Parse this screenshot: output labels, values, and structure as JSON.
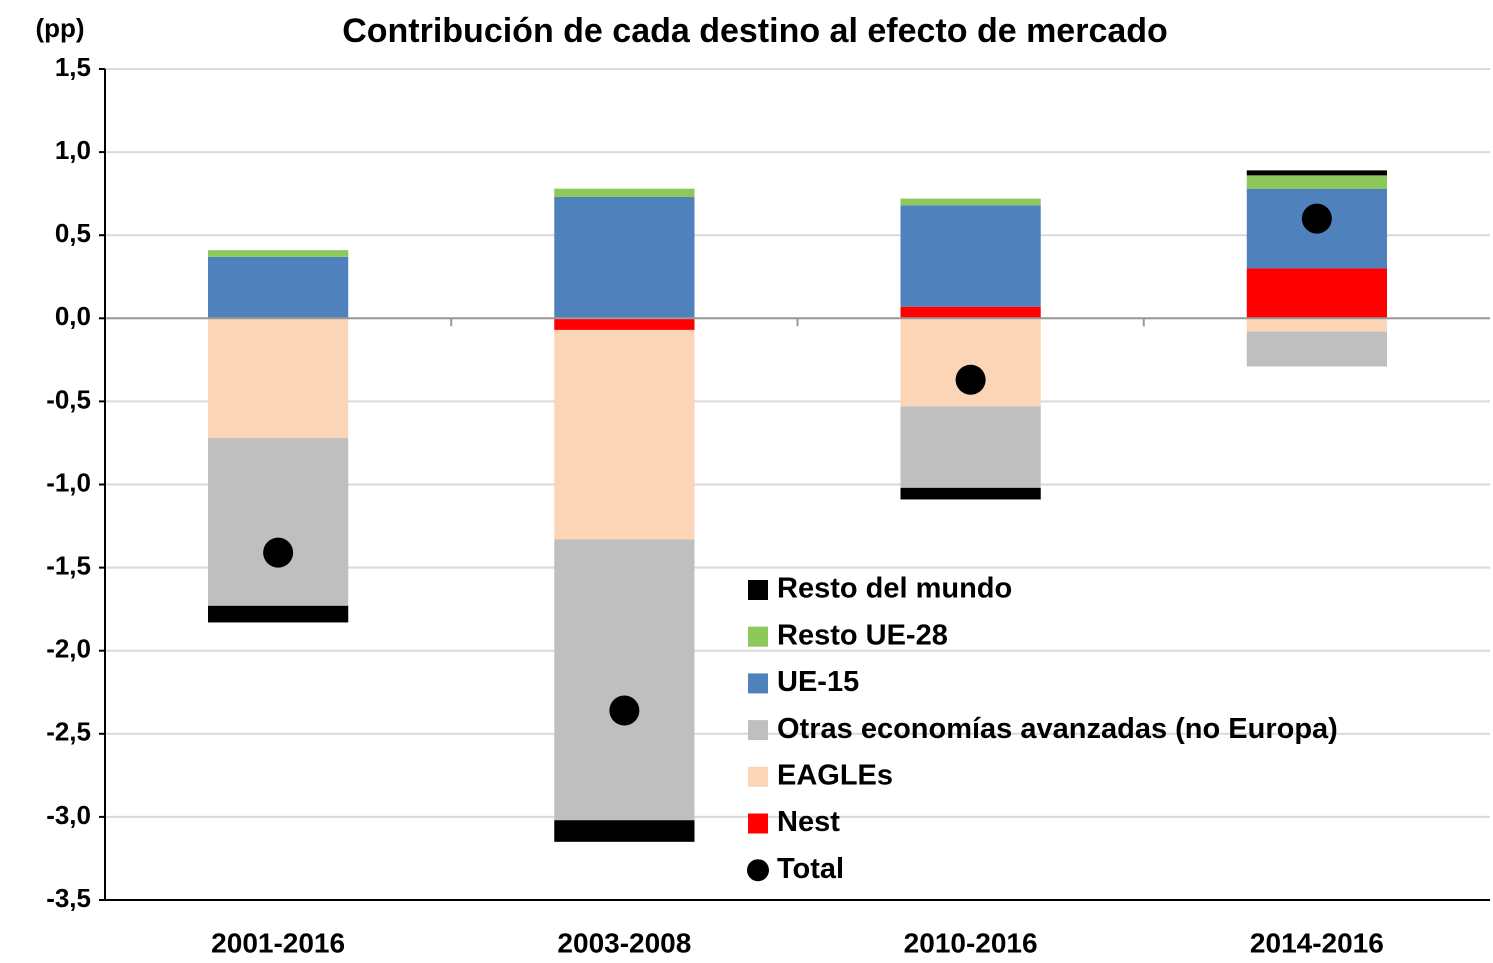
{
  "chart_data": {
    "type": "stacked_bar",
    "title": "Contribución de cada destino al efecto de mercado",
    "y_label": "(pp)",
    "categories": [
      "2001-2016",
      "2003-2008",
      "2010-2016",
      "2014-2016"
    ],
    "series": [
      {
        "name": "Resto del mundo",
        "color": "#000000",
        "values": [
          -0.1,
          -0.13,
          -0.07,
          0.03
        ]
      },
      {
        "name": "Resto UE-28",
        "color": "#8dc85a",
        "values": [
          0.04,
          0.05,
          0.04,
          0.08
        ]
      },
      {
        "name": "UE-15",
        "color": "#4f81bd",
        "values": [
          0.37,
          0.73,
          0.61,
          0.48
        ]
      },
      {
        "name": "Otras economías avanzadas (no Europa)",
        "color": "#bfbfbf",
        "values": [
          -1.01,
          -1.69,
          -0.49,
          -0.21
        ]
      },
      {
        "name": "EAGLEs",
        "color": "#fbd5b5",
        "values": [
          -0.72,
          -1.26,
          -0.53,
          -0.08
        ]
      },
      {
        "name": "Nest",
        "color": "#ff0000",
        "values": [
          0,
          -0.07,
          0.07,
          0.3
        ]
      }
    ],
    "total": {
      "name": "Total",
      "color": "#000000",
      "values": [
        -1.41,
        -2.36,
        -0.37,
        0.6
      ]
    },
    "ylim": [
      -3.5,
      1.5
    ],
    "yticks": [
      {
        "value": -3.5,
        "label": "-3,5"
      },
      {
        "value": -3,
        "label": "-3,0"
      },
      {
        "value": -2.5,
        "label": "-2,5"
      },
      {
        "value": -2,
        "label": "-2,0"
      },
      {
        "value": -1.5,
        "label": "-1,5"
      },
      {
        "value": -1,
        "label": "-1,0"
      },
      {
        "value": -0.5,
        "label": "-0,5"
      },
      {
        "value": 0,
        "label": "0,0"
      },
      {
        "value": 0.5,
        "label": "0,5"
      },
      {
        "value": 1,
        "label": "1,0"
      },
      {
        "value": 1.5,
        "label": "1,5"
      }
    ],
    "grid": true
  }
}
